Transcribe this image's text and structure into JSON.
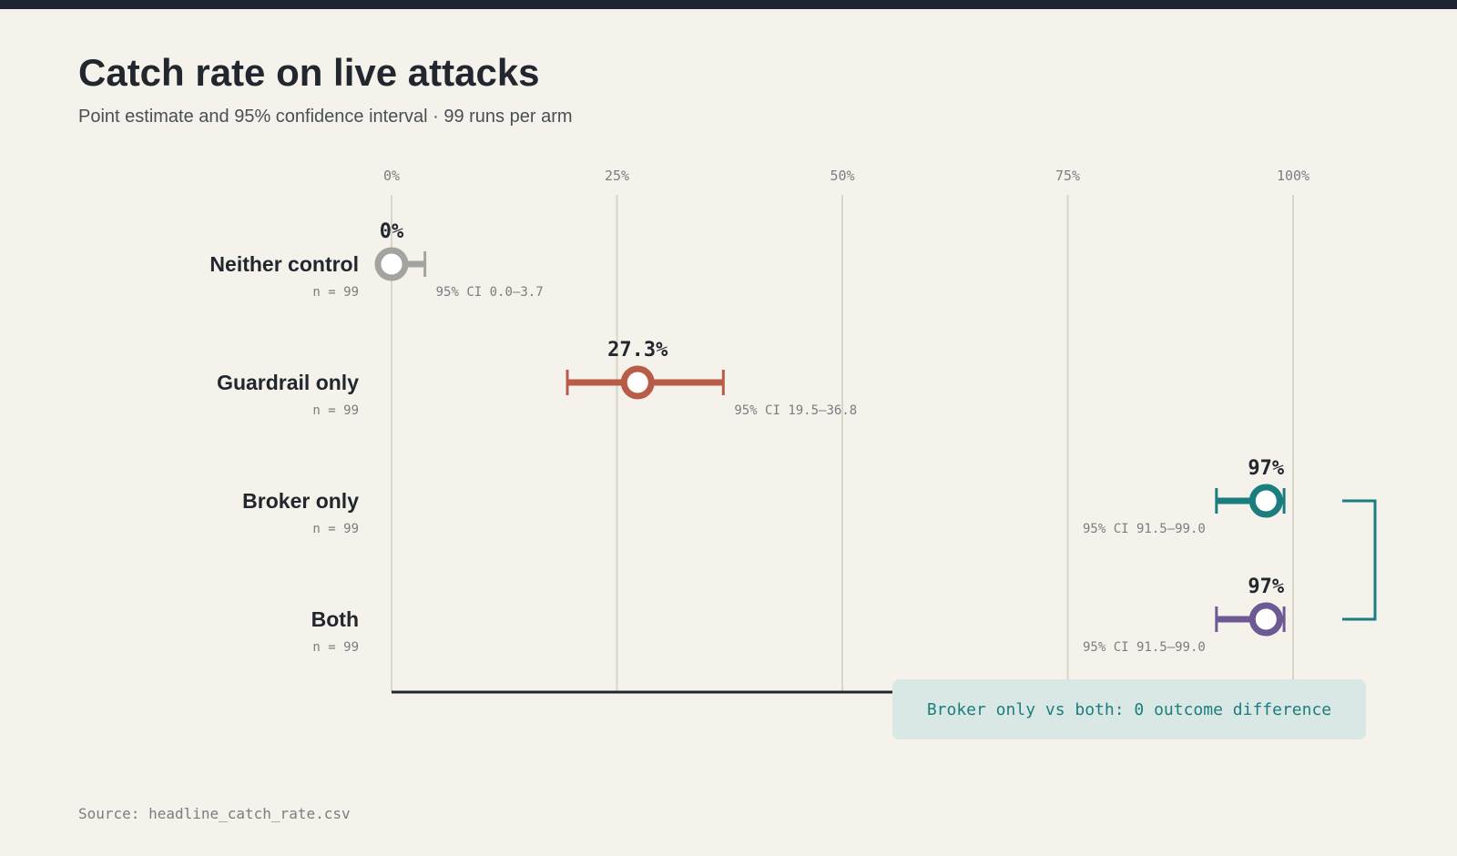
{
  "header": {
    "title": "Catch rate on live attacks",
    "subtitle": "Point estimate and 95% confidence interval · 99 runs per arm"
  },
  "footer": {
    "source": "Source: headline_catch_rate.csv"
  },
  "callout": {
    "text": "Broker only vs both: 0 outcome difference"
  },
  "chart_data": {
    "type": "dot-interval",
    "title": "Catch rate on live attacks",
    "xlim": [
      0,
      100
    ],
    "x_ticks": [
      0,
      25,
      50,
      75,
      100
    ],
    "x_tick_labels": [
      "0%",
      "25%",
      "50%",
      "75%",
      "100%"
    ],
    "grid": true,
    "series": [
      {
        "name": "Neither control",
        "n_label": "n = 99",
        "value": 0,
        "value_label": "0%",
        "ci": [
          0.0,
          3.7
        ],
        "ci_label": "95% CI 0.0–3.7",
        "color": "#a3a3a0"
      },
      {
        "name": "Guardrail only",
        "n_label": "n = 99",
        "value": 27.3,
        "value_label": "27.3%",
        "ci": [
          19.5,
          36.8
        ],
        "ci_label": "95% CI 19.5–36.8",
        "color": "#b85c48"
      },
      {
        "name": "Broker only",
        "n_label": "n = 99",
        "value": 97,
        "value_label": "97%",
        "ci": [
          91.5,
          99.0
        ],
        "ci_label": "95% CI 91.5–99.0",
        "color": "#1c7d7f"
      },
      {
        "name": "Both",
        "n_label": "n = 99",
        "value": 97,
        "value_label": "97%",
        "ci": [
          91.5,
          99.0
        ],
        "ci_label": "95% CI 91.5–99.0",
        "color": "#6e5a92"
      }
    ],
    "bracket": {
      "from": "Broker only",
      "to": "Both",
      "color": "#1c7d7f"
    }
  }
}
